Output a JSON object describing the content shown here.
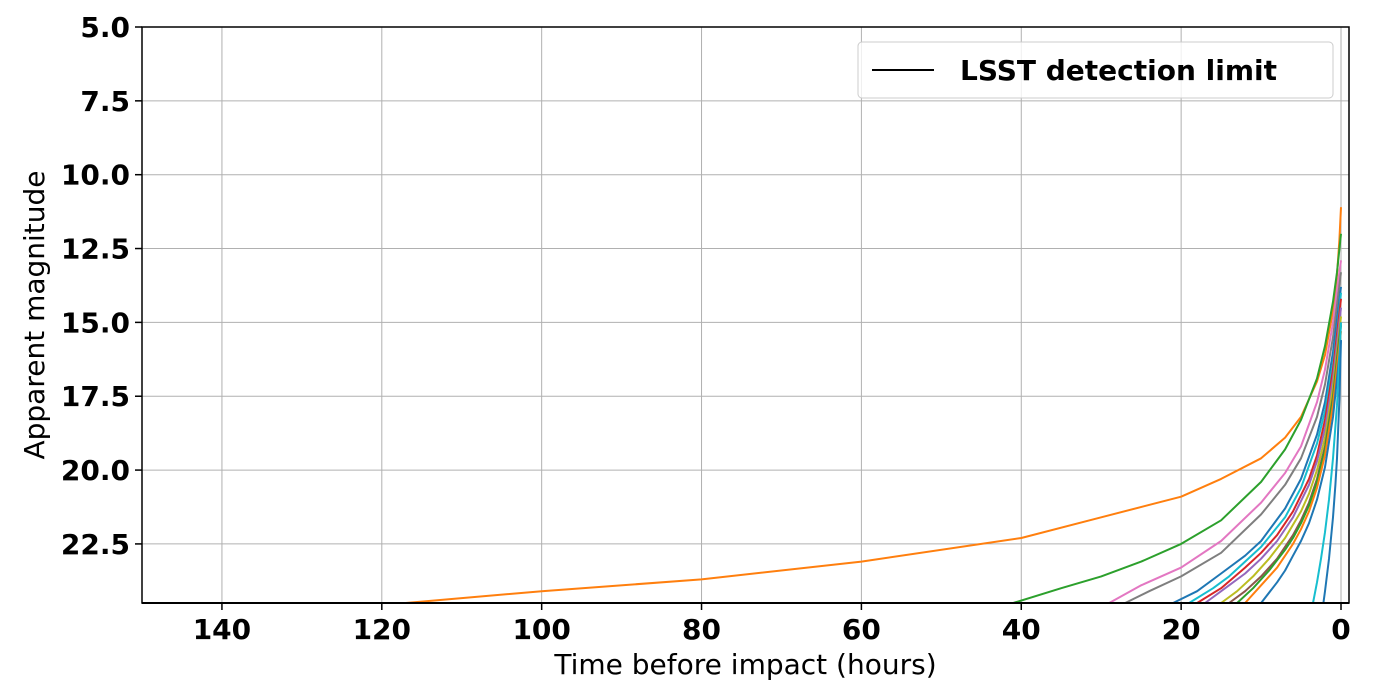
{
  "chart_data": {
    "type": "line",
    "xlabel": "Time before impact (hours)",
    "ylabel": "Apparent magnitude",
    "xlim": [
      150,
      -1
    ],
    "ylim": [
      24.5,
      5.0
    ],
    "y_inverted": true,
    "x_reversed": true,
    "grid": true,
    "legend_position": "top-right",
    "xticks": [
      140,
      120,
      100,
      80,
      60,
      40,
      20,
      0
    ],
    "xtick_labels": [
      "140",
      "120",
      "100",
      "80",
      "60",
      "40",
      "20",
      "0"
    ],
    "yticks": [
      5.0,
      7.5,
      10.0,
      12.5,
      15.0,
      17.5,
      20.0,
      22.5
    ],
    "ytick_labels": [
      "5.0",
      "7.5",
      "10.0",
      "12.5",
      "15.0",
      "17.5",
      "20.0",
      "22.5"
    ],
    "detection_limit": {
      "name": "LSST detection limit",
      "y": 24.5,
      "color": "#000000"
    },
    "series": [
      {
        "color": "#ff7f0e",
        "x": [
          117,
          100,
          80,
          60,
          40,
          30,
          20,
          15,
          10,
          7,
          5,
          3,
          2,
          1,
          0.5,
          0.2,
          0
        ],
        "y": [
          24.5,
          24.1,
          23.7,
          23.1,
          22.3,
          21.6,
          20.9,
          20.3,
          19.6,
          18.9,
          18.2,
          17.0,
          16.1,
          14.6,
          13.4,
          12.2,
          11.1
        ]
      },
      {
        "color": "#2ca02c",
        "x": [
          41,
          35,
          30,
          25,
          20,
          15,
          10,
          7,
          5,
          3,
          2,
          1,
          0.5,
          0
        ],
        "y": [
          24.5,
          24.0,
          23.6,
          23.1,
          22.5,
          21.7,
          20.4,
          19.3,
          18.3,
          16.9,
          15.8,
          14.3,
          13.3,
          12.0
        ]
      },
      {
        "color": "#e377c2",
        "x": [
          29,
          25,
          20,
          15,
          10,
          7,
          5,
          3,
          2,
          1,
          0.5,
          0
        ],
        "y": [
          24.5,
          23.9,
          23.3,
          22.4,
          21.1,
          20.1,
          19.2,
          17.7,
          16.6,
          15.0,
          13.9,
          12.9
        ]
      },
      {
        "color": "#7f7f7f",
        "x": [
          27,
          24,
          20,
          15,
          10,
          7,
          5,
          3,
          2,
          1,
          0.5,
          0
        ],
        "y": [
          24.5,
          24.1,
          23.6,
          22.8,
          21.5,
          20.5,
          19.6,
          18.2,
          17.1,
          15.5,
          14.4,
          13.3
        ]
      },
      {
        "color": "#1f77b4",
        "x": [
          21,
          18,
          15,
          12,
          10,
          7,
          5,
          3,
          2,
          1,
          0.5,
          0
        ],
        "y": [
          24.5,
          24.1,
          23.5,
          22.9,
          22.4,
          21.3,
          20.3,
          18.8,
          17.7,
          16.0,
          14.9,
          13.8
        ]
      },
      {
        "color": "#17becf",
        "x": [
          19,
          16,
          14,
          12,
          10,
          7,
          5,
          3,
          2,
          1,
          0.5,
          0
        ],
        "y": [
          24.5,
          24.0,
          23.6,
          23.1,
          22.6,
          21.6,
          20.6,
          19.1,
          18.0,
          16.4,
          15.3,
          14.0
        ]
      },
      {
        "color": "#d62728",
        "x": [
          18,
          15,
          12,
          10,
          8,
          6,
          4,
          3,
          2,
          1,
          0.5,
          0
        ],
        "y": [
          24.5,
          24.0,
          23.3,
          22.8,
          22.2,
          21.4,
          20.3,
          19.5,
          18.3,
          16.6,
          15.4,
          14.2
        ]
      },
      {
        "color": "#9467bd",
        "x": [
          17,
          14,
          12,
          10,
          8,
          6,
          4,
          3,
          2,
          1,
          0.5,
          0
        ],
        "y": [
          24.5,
          23.9,
          23.5,
          23.0,
          22.4,
          21.6,
          20.5,
          19.7,
          18.6,
          16.9,
          15.7,
          14.5
        ]
      },
      {
        "color": "#bcbd22",
        "x": [
          15,
          13,
          11,
          9,
          7,
          5,
          4,
          3,
          2,
          1,
          0.5,
          0
        ],
        "y": [
          24.5,
          24.1,
          23.6,
          23.0,
          22.3,
          21.4,
          20.8,
          20.0,
          18.9,
          17.2,
          16.0,
          14.8
        ]
      },
      {
        "color": "#8c564b",
        "x": [
          14,
          12,
          10,
          8,
          6,
          5,
          4,
          3,
          2,
          1,
          0.5,
          0
        ],
        "y": [
          24.5,
          24.1,
          23.6,
          23.0,
          22.2,
          21.7,
          21.1,
          20.3,
          19.2,
          17.5,
          16.2,
          15.0
        ]
      },
      {
        "color": "#2ca02c",
        "x": [
          13,
          11,
          9,
          7,
          6,
          5,
          4,
          3,
          2,
          1,
          0.5,
          0
        ],
        "y": [
          24.5,
          24.0,
          23.4,
          22.7,
          22.3,
          21.8,
          21.2,
          20.4,
          19.3,
          17.6,
          16.3,
          15.1
        ]
      },
      {
        "color": "#ff7f0e",
        "x": [
          12,
          10,
          8,
          7,
          6,
          5,
          4,
          3,
          2,
          1,
          0.5,
          0
        ],
        "y": [
          24.5,
          23.9,
          23.3,
          22.9,
          22.5,
          22.0,
          21.4,
          20.6,
          19.5,
          17.8,
          16.5,
          15.3
        ]
      },
      {
        "color": "#1f77b4",
        "x": [
          10,
          8,
          7,
          6,
          5,
          4,
          3,
          2,
          1,
          0.5,
          0
        ],
        "y": [
          24.5,
          23.8,
          23.4,
          22.9,
          22.4,
          21.8,
          21.0,
          19.9,
          18.2,
          16.9,
          15.6
        ]
      },
      {
        "color": "#17becf",
        "x": [
          3.5,
          3,
          2.5,
          2,
          1.5,
          1,
          0.5,
          0.2,
          0
        ],
        "y": [
          24.5,
          23.8,
          23.0,
          22.1,
          21.0,
          19.6,
          17.8,
          16.2,
          15.0
        ]
      },
      {
        "color": "#1f77b4",
        "x": [
          2.2,
          2,
          1.5,
          1,
          0.7,
          0.5,
          0.2,
          0
        ],
        "y": [
          24.5,
          24.1,
          23.0,
          21.6,
          20.5,
          19.6,
          17.6,
          15.6
        ]
      }
    ]
  }
}
